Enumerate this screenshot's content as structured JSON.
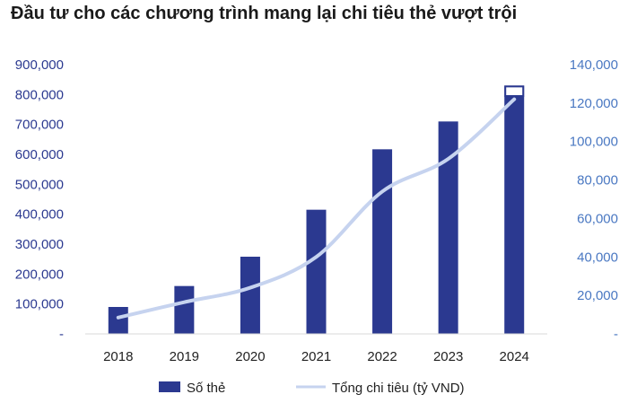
{
  "title": "Đầu tư cho các chương trình mang lại chi tiêu thẻ vượt trội",
  "colors": {
    "bar": "#2b3990",
    "line": "#c6d3ef",
    "left_axis_text": "#2b3990",
    "right_axis_text": "#4a78c2",
    "bar_highlight_fill": "#ffffff"
  },
  "chart_data": {
    "type": "bar",
    "categories": [
      "2018",
      "2019",
      "2020",
      "2021",
      "2022",
      "2023",
      "2024"
    ],
    "series": [
      {
        "name": "Số thẻ",
        "type": "bar",
        "axis": "left",
        "values": [
          90000,
          160000,
          258000,
          415000,
          617000,
          710000,
          830000
        ],
        "highlight_segment_last": [
          795000,
          830000
        ]
      },
      {
        "name": "Tổng chi tiêu (tỷ VND)",
        "type": "line",
        "axis": "right",
        "values": [
          8500,
          16500,
          24000,
          40000,
          74000,
          91000,
          122000
        ]
      }
    ],
    "y_left": {
      "ylim": [
        0,
        900000
      ],
      "ticks": [
        0,
        100000,
        200000,
        300000,
        400000,
        500000,
        600000,
        700000,
        800000,
        900000
      ],
      "tick_labels": [
        "-",
        "100,000",
        "200,000",
        "300,000",
        "400,000",
        "500,000",
        "600,000",
        "700,000",
        "800,000",
        "900,000"
      ]
    },
    "y_right": {
      "ylim": [
        0,
        140000
      ],
      "ticks": [
        0,
        20000,
        40000,
        60000,
        80000,
        100000,
        120000,
        140000
      ],
      "tick_labels": [
        "-",
        "20,000",
        "40,000",
        "60,000",
        "80,000",
        "100,000",
        "120,000",
        "140,000"
      ]
    },
    "grid": false,
    "legend_position": "bottom"
  }
}
